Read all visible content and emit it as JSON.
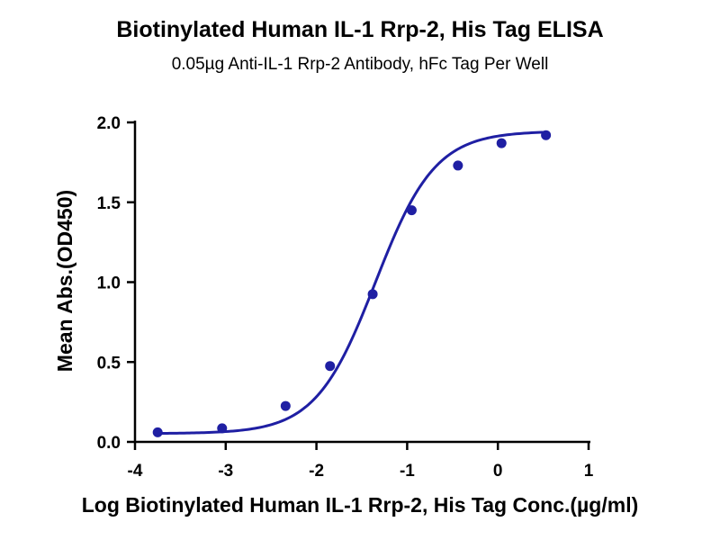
{
  "chart_data": {
    "type": "scatter",
    "title": "Biotinylated Human IL-1 Rrp-2, His Tag ELISA",
    "subtitle": "0.05µg Anti-IL-1 Rrp-2 Antibody, hFc Tag Per Well",
    "xlabel": "Log Biotinylated Human IL-1 Rrp-2, His Tag Conc.(µg/ml)",
    "ylabel": "Mean Abs.(OD450)",
    "xlim": [
      -4,
      1
    ],
    "ylim": [
      0,
      2
    ],
    "xticks": [
      "-4",
      "-3",
      "-2",
      "-1",
      "0",
      "1"
    ],
    "yticks": [
      "0.0",
      "0.5",
      "1.0",
      "1.5",
      "2.0"
    ],
    "grid": false,
    "color": "#1f1fa3",
    "series": [
      {
        "x": [
          -3.75,
          -3.04,
          -2.34,
          -1.85,
          -1.38,
          -0.95,
          -0.44,
          0.04,
          0.53
        ],
        "y": [
          0.06,
          0.085,
          0.225,
          0.475,
          0.925,
          1.45,
          1.73,
          1.87,
          1.92
        ]
      }
    ],
    "fit": {
      "type": "4PL",
      "bottom": 0.052,
      "top": 1.945,
      "logEC50": -1.35,
      "hill": 1.32
    }
  }
}
